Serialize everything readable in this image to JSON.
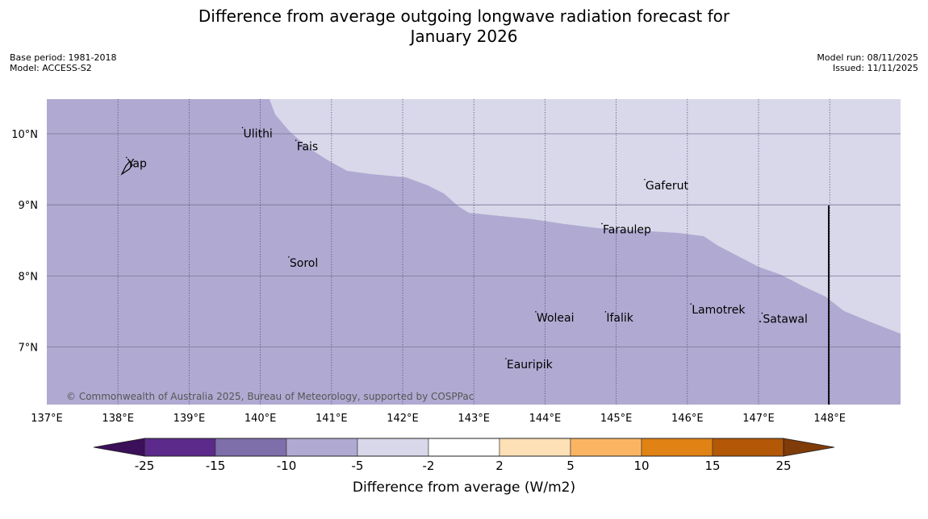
{
  "title": {
    "line1": "Difference from average outgoing longwave radiation forecast for",
    "line2": "January 2026"
  },
  "meta_left": {
    "base_period": "Base period: 1981-2018",
    "model": "Model: ACCESS-S2"
  },
  "meta_right": {
    "model_run": "Model run: 08/11/2025",
    "issued": "Issued: 11/11/2025"
  },
  "map": {
    "extent": {
      "lon": [
        137,
        149
      ],
      "lat": [
        6.2,
        10.5
      ]
    },
    "lon_ticks": [
      "137°E",
      "138°E",
      "139°E",
      "140°E",
      "141°E",
      "142°E",
      "143°E",
      "144°E",
      "145°E",
      "146°E",
      "147°E",
      "148°E"
    ],
    "lat_ticks": [
      "10°N",
      "9°N",
      "8°N",
      "7°N"
    ],
    "colors": {
      "band_-10_-5": "#b0aad2",
      "band_-5_-2": "#d8d8ea"
    },
    "places": [
      {
        "name": "Ulithi",
        "lon": 139.75,
        "lat": 9.95
      },
      {
        "name": "Fais",
        "lon": 140.5,
        "lat": 9.77
      },
      {
        "name": "Yap",
        "lon": 138.12,
        "lat": 9.53
      },
      {
        "name": "Gaferut",
        "lon": 145.4,
        "lat": 9.22
      },
      {
        "name": "Faraulep",
        "lon": 144.8,
        "lat": 8.6
      },
      {
        "name": "Sorol",
        "lon": 140.4,
        "lat": 8.13
      },
      {
        "name": "Lamotrek",
        "lon": 146.05,
        "lat": 7.47
      },
      {
        "name": "Satawal",
        "lon": 147.05,
        "lat": 7.34
      },
      {
        "name": "Woleai",
        "lon": 143.87,
        "lat": 7.36
      },
      {
        "name": "Ifalik",
        "lon": 144.85,
        "lat": 7.36
      },
      {
        "name": "Eauripik",
        "lon": 143.45,
        "lat": 6.7
      }
    ],
    "copyright": "© Commonwealth of Australia 2025, Bureau of Meteorology, supported by COSPPac"
  },
  "colorbar": {
    "title": "Difference from average (W/m2)",
    "ticks": [
      "-25",
      "-15",
      "-10",
      "-5",
      "-2",
      "2",
      "5",
      "10",
      "15",
      "25"
    ],
    "colors": [
      "#3b0f5a",
      "#5b2a8a",
      "#7e6eaa",
      "#b0aad2",
      "#d8d8ea",
      "#ffffff",
      "#fde0b6",
      "#fbb562",
      "#e08214",
      "#b35806",
      "#7f3b08"
    ]
  }
}
